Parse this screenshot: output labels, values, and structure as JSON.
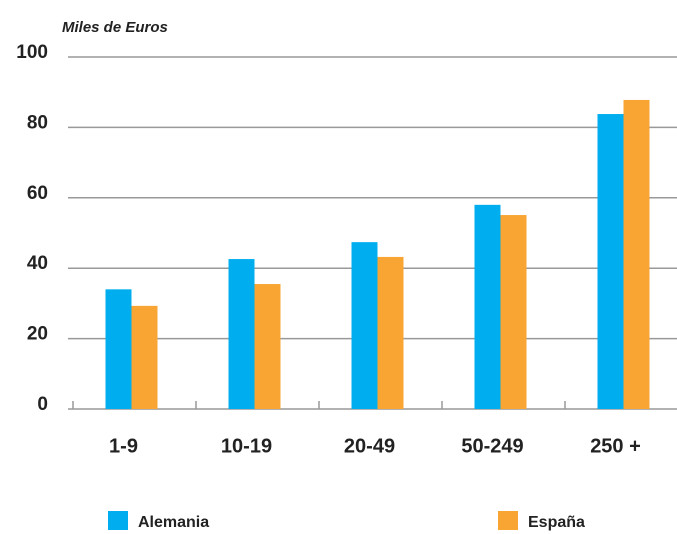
{
  "chart_data": {
    "type": "bar",
    "y_label": "Miles de Euros",
    "categories": [
      "1-9",
      "10-19",
      "20-49",
      "50-249",
      "250 +"
    ],
    "series": [
      {
        "name": "Alemania",
        "color": "#00aeef",
        "values": [
          34,
          42.6,
          47.4,
          58,
          83.8
        ]
      },
      {
        "name": "España",
        "color": "#f9a533",
        "values": [
          29.3,
          35.5,
          43.2,
          55.1,
          87.8
        ]
      }
    ],
    "ylim": [
      0,
      100
    ],
    "yticks": [
      0,
      20,
      40,
      60,
      80,
      100
    ],
    "grid": true,
    "legend": "bottom"
  }
}
